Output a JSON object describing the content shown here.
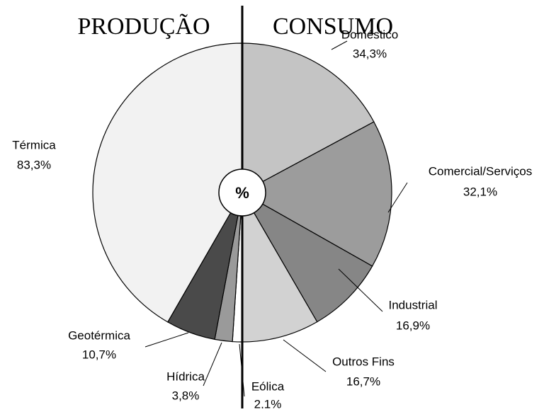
{
  "center_label": "%",
  "chart_data": [
    {
      "type": "pie",
      "title": "PRODUÇÃO",
      "categories": [
        "Eólica",
        "Hídrica",
        "Geotérmica",
        "Térmica"
      ],
      "values": [
        2.1,
        3.8,
        10.7,
        83.3
      ],
      "value_labels": [
        "2,1%",
        "3,8%",
        "10,7%",
        "83,3%"
      ],
      "colors": [
        "#ffffff",
        "#9a9a9a",
        "#4a4a4a",
        "#f2f2f2"
      ]
    },
    {
      "type": "pie",
      "title": "CONSUMO",
      "categories": [
        "Doméstico",
        "Comercial/Serviços",
        "Industrial",
        "Outros Fins"
      ],
      "values": [
        34.3,
        32.1,
        16.9,
        16.7
      ],
      "value_labels": [
        "34,3%",
        "32,1%",
        "16,9%",
        "16,7%"
      ],
      "colors": [
        "#c4c4c4",
        "#9c9c9c",
        "#868686",
        "#d2d2d2"
      ]
    }
  ]
}
